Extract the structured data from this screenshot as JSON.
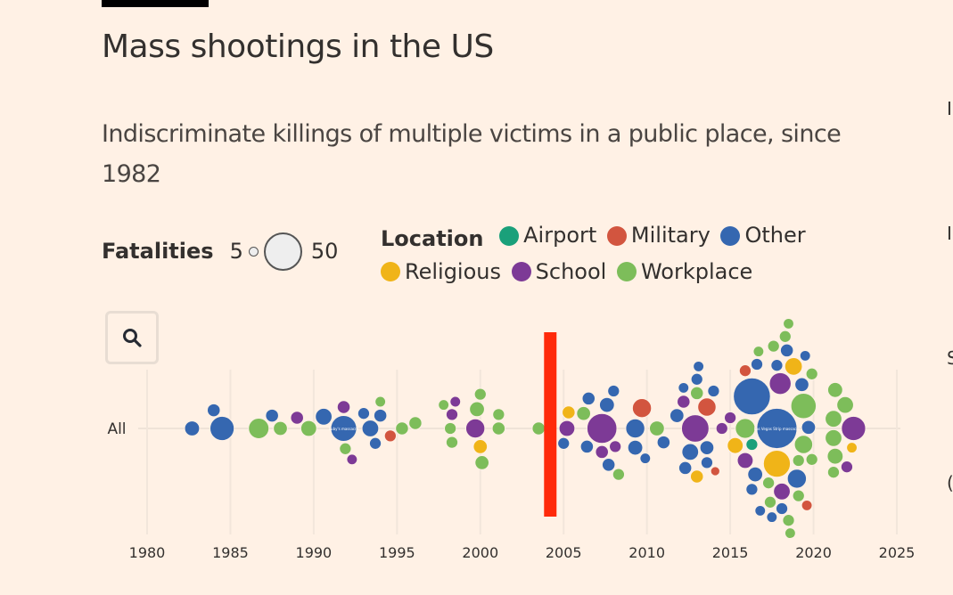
{
  "header": {
    "title": "Mass shootings in the US",
    "subtitle": "Indiscriminate killings of multiple victims in a public place, since 1982"
  },
  "legend": {
    "size_label": "Fatalities",
    "size_min": "5",
    "size_max": "50",
    "location_label": "Location",
    "locations": [
      {
        "name": "Airport",
        "color": "#1aa07a"
      },
      {
        "name": "Military",
        "color": "#d2553f"
      },
      {
        "name": "Other",
        "color": "#3567b0"
      },
      {
        "name": "Religious",
        "color": "#f0b418"
      },
      {
        "name": "School",
        "color": "#7d3a96"
      },
      {
        "name": "Workplace",
        "color": "#7dbd5a"
      }
    ]
  },
  "controls": {
    "zoom_button_icon": "search-icon"
  },
  "right_edge_glyphs": [
    "I",
    "I",
    "S",
    "("
  ],
  "chart_data": {
    "type": "scatter",
    "subtype": "beeswarm",
    "title": "Mass shootings in the US",
    "row_label": "All",
    "xlabel": "",
    "ylabel": "",
    "xlim": [
      1980,
      2025
    ],
    "xticks": [
      1980,
      1985,
      1990,
      1995,
      2000,
      2005,
      2010,
      2015,
      2020,
      2025
    ],
    "grid": true,
    "size_encoding": "fatalities",
    "color_encoding": "location",
    "highlight": {
      "type": "vertical-bar",
      "year": 2004.2,
      "color": "#ff2a0a"
    },
    "labels": [
      {
        "year": 1991.8,
        "text": "Luby's massacre"
      },
      {
        "year": 2017.8,
        "text": "Las Vegas Strip massacre"
      }
    ],
    "points": [
      {
        "year": 1982.7,
        "fatalities": 8,
        "location": "Other"
      },
      {
        "year": 1984.0,
        "fatalities": 6,
        "location": "Other"
      },
      {
        "year": 1984.5,
        "fatalities": 21,
        "location": "Other"
      },
      {
        "year": 1986.7,
        "fatalities": 15,
        "location": "Workplace"
      },
      {
        "year": 1987.5,
        "fatalities": 6,
        "location": "Other"
      },
      {
        "year": 1988.0,
        "fatalities": 7,
        "location": "Workplace"
      },
      {
        "year": 1989.0,
        "fatalities": 6,
        "location": "School"
      },
      {
        "year": 1989.7,
        "fatalities": 9,
        "location": "Workplace"
      },
      {
        "year": 1990.6,
        "fatalities": 10,
        "location": "Other"
      },
      {
        "year": 1991.8,
        "fatalities": 24,
        "location": "Other"
      },
      {
        "year": 1991.8,
        "fatalities": 6,
        "location": "School"
      },
      {
        "year": 1991.9,
        "fatalities": 5,
        "location": "Workplace"
      },
      {
        "year": 1992.3,
        "fatalities": 4,
        "location": "School"
      },
      {
        "year": 1993.0,
        "fatalities": 5,
        "location": "Other"
      },
      {
        "year": 1993.4,
        "fatalities": 10,
        "location": "Other"
      },
      {
        "year": 1993.7,
        "fatalities": 5,
        "location": "Other"
      },
      {
        "year": 1994.0,
        "fatalities": 6,
        "location": "Other"
      },
      {
        "year": 1994.0,
        "fatalities": 4,
        "location": "Workplace"
      },
      {
        "year": 1994.6,
        "fatalities": 5,
        "location": "Military"
      },
      {
        "year": 1995.3,
        "fatalities": 6,
        "location": "Workplace"
      },
      {
        "year": 1996.1,
        "fatalities": 6,
        "location": "Workplace"
      },
      {
        "year": 1997.8,
        "fatalities": 4,
        "location": "Workplace"
      },
      {
        "year": 1998.2,
        "fatalities": 5,
        "location": "Workplace"
      },
      {
        "year": 1998.3,
        "fatalities": 5,
        "location": "School"
      },
      {
        "year": 1998.3,
        "fatalities": 5,
        "location": "Workplace"
      },
      {
        "year": 1998.5,
        "fatalities": 4,
        "location": "School"
      },
      {
        "year": 1999.7,
        "fatalities": 13,
        "location": "School"
      },
      {
        "year": 1999.8,
        "fatalities": 8,
        "location": "Workplace"
      },
      {
        "year": 2000.0,
        "fatalities": 7,
        "location": "Religious"
      },
      {
        "year": 2000.0,
        "fatalities": 5,
        "location": "Workplace"
      },
      {
        "year": 2000.1,
        "fatalities": 7,
        "location": "Workplace"
      },
      {
        "year": 2001.1,
        "fatalities": 5,
        "location": "Workplace"
      },
      {
        "year": 2001.1,
        "fatalities": 6,
        "location": "Workplace"
      },
      {
        "year": 2003.5,
        "fatalities": 6,
        "location": "Workplace"
      },
      {
        "year": 2005.0,
        "fatalities": 5,
        "location": "Other"
      },
      {
        "year": 2005.2,
        "fatalities": 9,
        "location": "School"
      },
      {
        "year": 2005.3,
        "fatalities": 6,
        "location": "Religious"
      },
      {
        "year": 2006.2,
        "fatalities": 7,
        "location": "Workplace"
      },
      {
        "year": 2006.4,
        "fatalities": 6,
        "location": "Other"
      },
      {
        "year": 2006.5,
        "fatalities": 6,
        "location": "Other"
      },
      {
        "year": 2007.3,
        "fatalities": 32,
        "location": "School"
      },
      {
        "year": 2007.3,
        "fatalities": 6,
        "location": "School"
      },
      {
        "year": 2007.6,
        "fatalities": 8,
        "location": "Other"
      },
      {
        "year": 2007.7,
        "fatalities": 6,
        "location": "Other"
      },
      {
        "year": 2008.0,
        "fatalities": 5,
        "location": "Other"
      },
      {
        "year": 2008.1,
        "fatalities": 5,
        "location": "School"
      },
      {
        "year": 2008.3,
        "fatalities": 5,
        "location": "Workplace"
      },
      {
        "year": 2009.3,
        "fatalities": 13,
        "location": "Other"
      },
      {
        "year": 2009.3,
        "fatalities": 8,
        "location": "Other"
      },
      {
        "year": 2009.7,
        "fatalities": 13,
        "location": "Military"
      },
      {
        "year": 2009.9,
        "fatalities": 4,
        "location": "Other"
      },
      {
        "year": 2010.6,
        "fatalities": 8,
        "location": "Workplace"
      },
      {
        "year": 2011.0,
        "fatalities": 6,
        "location": "Other"
      },
      {
        "year": 2011.8,
        "fatalities": 7,
        "location": "Other"
      },
      {
        "year": 2012.2,
        "fatalities": 4,
        "location": "Other"
      },
      {
        "year": 2012.2,
        "fatalities": 6,
        "location": "School"
      },
      {
        "year": 2012.3,
        "fatalities": 6,
        "location": "Other"
      },
      {
        "year": 2012.6,
        "fatalities": 10,
        "location": "Other"
      },
      {
        "year": 2012.9,
        "fatalities": 27,
        "location": "School"
      },
      {
        "year": 2013.0,
        "fatalities": 6,
        "location": "Workplace"
      },
      {
        "year": 2013.0,
        "fatalities": 6,
        "location": "Religious"
      },
      {
        "year": 2013.0,
        "fatalities": 5,
        "location": "Other"
      },
      {
        "year": 2013.1,
        "fatalities": 4,
        "location": "Other"
      },
      {
        "year": 2013.6,
        "fatalities": 12,
        "location": "Military"
      },
      {
        "year": 2013.6,
        "fatalities": 7,
        "location": "Other"
      },
      {
        "year": 2013.6,
        "fatalities": 5,
        "location": "Other"
      },
      {
        "year": 2014.0,
        "fatalities": 5,
        "location": "Other"
      },
      {
        "year": 2014.1,
        "fatalities": 3,
        "location": "Military"
      },
      {
        "year": 2014.5,
        "fatalities": 5,
        "location": "School"
      },
      {
        "year": 2015.0,
        "fatalities": 5,
        "location": "School"
      },
      {
        "year": 2015.3,
        "fatalities": 9,
        "location": "Religious"
      },
      {
        "year": 2015.9,
        "fatalities": 14,
        "location": "Workplace"
      },
      {
        "year": 2015.9,
        "fatalities": 9,
        "location": "School"
      },
      {
        "year": 2015.9,
        "fatalities": 5,
        "location": "Military"
      },
      {
        "year": 2016.3,
        "fatalities": 49,
        "location": "Other"
      },
      {
        "year": 2016.3,
        "fatalities": 5,
        "location": "Airport"
      },
      {
        "year": 2016.3,
        "fatalities": 5,
        "location": "Other"
      },
      {
        "year": 2016.5,
        "fatalities": 8,
        "location": "Other"
      },
      {
        "year": 2016.6,
        "fatalities": 5,
        "location": "Other"
      },
      {
        "year": 2016.7,
        "fatalities": 4,
        "location": "Workplace"
      },
      {
        "year": 2016.8,
        "fatalities": 4,
        "location": "Other"
      },
      {
        "year": 2017.8,
        "fatalities": 58,
        "location": "Other"
      },
      {
        "year": 2017.8,
        "fatalities": 26,
        "location": "Religious"
      },
      {
        "year": 2017.8,
        "fatalities": 5,
        "location": "Other"
      },
      {
        "year": 2017.3,
        "fatalities": 5,
        "location": "Workplace"
      },
      {
        "year": 2017.4,
        "fatalities": 5,
        "location": "Workplace"
      },
      {
        "year": 2017.5,
        "fatalities": 4,
        "location": "Other"
      },
      {
        "year": 2017.6,
        "fatalities": 5,
        "location": "Workplace"
      },
      {
        "year": 2018.0,
        "fatalities": 17,
        "location": "School"
      },
      {
        "year": 2018.1,
        "fatalities": 10,
        "location": "School"
      },
      {
        "year": 2018.1,
        "fatalities": 5,
        "location": "Other"
      },
      {
        "year": 2018.3,
        "fatalities": 5,
        "location": "Workplace"
      },
      {
        "year": 2018.4,
        "fatalities": 6,
        "location": "Other"
      },
      {
        "year": 2018.5,
        "fatalities": 5,
        "location": "Workplace"
      },
      {
        "year": 2018.5,
        "fatalities": 4,
        "location": "Workplace"
      },
      {
        "year": 2018.6,
        "fatalities": 4,
        "location": "Workplace"
      },
      {
        "year": 2018.8,
        "fatalities": 11,
        "location": "Religious"
      },
      {
        "year": 2019.0,
        "fatalities": 13,
        "location": "Other"
      },
      {
        "year": 2019.1,
        "fatalities": 5,
        "location": "Workplace"
      },
      {
        "year": 2019.1,
        "fatalities": 5,
        "location": "Workplace"
      },
      {
        "year": 2019.4,
        "fatalities": 23,
        "location": "Workplace"
      },
      {
        "year": 2019.4,
        "fatalities": 12,
        "location": "Workplace"
      },
      {
        "year": 2019.3,
        "fatalities": 7,
        "location": "Other"
      },
      {
        "year": 2019.5,
        "fatalities": 4,
        "location": "Other"
      },
      {
        "year": 2019.6,
        "fatalities": 4,
        "location": "Military"
      },
      {
        "year": 2019.7,
        "fatalities": 7,
        "location": "Other"
      },
      {
        "year": 2019.9,
        "fatalities": 5,
        "location": "Workplace"
      },
      {
        "year": 2019.9,
        "fatalities": 5,
        "location": "Workplace"
      },
      {
        "year": 2021.2,
        "fatalities": 10,
        "location": "Workplace"
      },
      {
        "year": 2021.2,
        "fatalities": 10,
        "location": "Workplace"
      },
      {
        "year": 2021.3,
        "fatalities": 9,
        "location": "Workplace"
      },
      {
        "year": 2021.3,
        "fatalities": 8,
        "location": "Workplace"
      },
      {
        "year": 2021.2,
        "fatalities": 5,
        "location": "Workplace"
      },
      {
        "year": 2021.9,
        "fatalities": 10,
        "location": "Workplace"
      },
      {
        "year": 2022.0,
        "fatalities": 5,
        "location": "School"
      },
      {
        "year": 2022.4,
        "fatalities": 21,
        "location": "School"
      },
      {
        "year": 2022.3,
        "fatalities": 4,
        "location": "Religious"
      }
    ]
  }
}
